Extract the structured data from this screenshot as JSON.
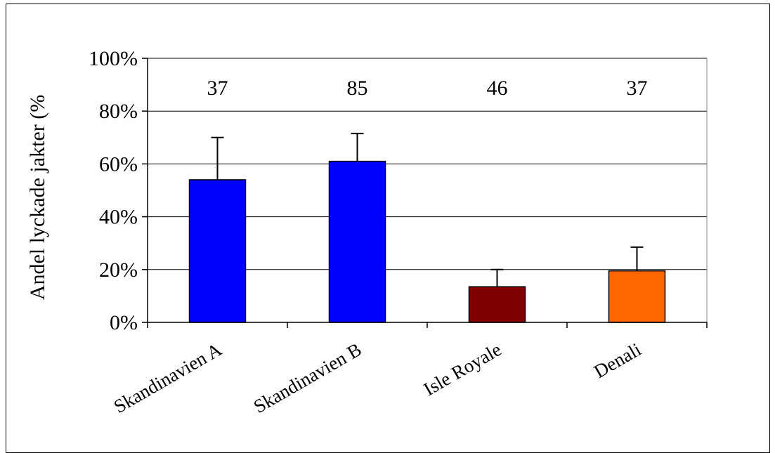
{
  "chart_data": {
    "type": "bar",
    "title": "",
    "xlabel": "",
    "ylabel": "Andel lyckade jakter (%",
    "ylim": [
      0,
      100
    ],
    "y_ticks": [
      "0%",
      "20%",
      "40%",
      "60%",
      "80%",
      "100%"
    ],
    "y_tick_values": [
      0,
      20,
      40,
      60,
      80,
      100
    ],
    "grid": true,
    "legend": "none",
    "categories": [
      "Skandinavien A",
      "Skandinavien B",
      "Isle Royale",
      "Denali"
    ],
    "values": [
      54,
      61,
      13.5,
      19.5
    ],
    "error_upper": [
      70,
      71.5,
      20,
      28.5
    ],
    "sample_sizes": [
      "37",
      "85",
      "46",
      "37"
    ],
    "bar_colors": [
      "#0000ff",
      "#0000ff",
      "#800000",
      "#ff6600"
    ]
  }
}
